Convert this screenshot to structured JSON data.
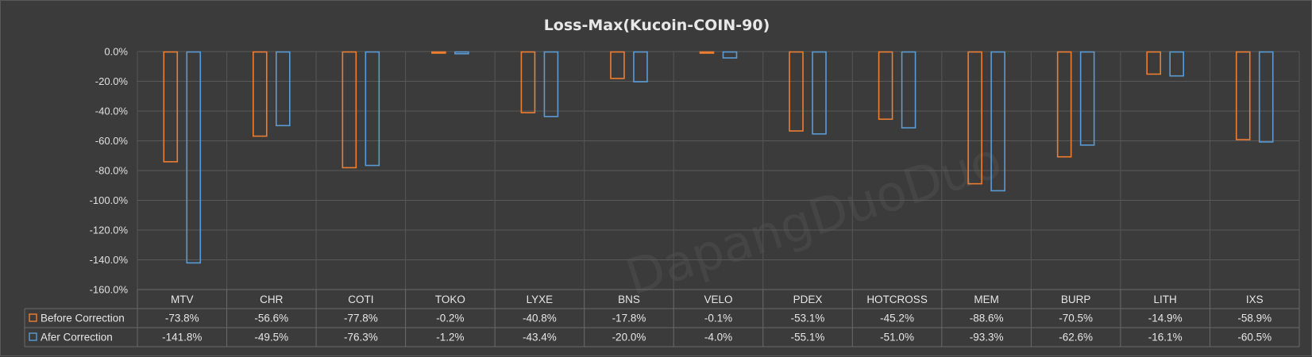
{
  "chart_data": {
    "type": "bar",
    "title": "Loss-Max(Kucoin-COIN-90)",
    "categories": [
      "MTV",
      "CHR",
      "COTI",
      "TOKO",
      "LYXE",
      "BNS",
      "VELO",
      "PDEX",
      "HOTCROSS",
      "MEM",
      "BURP",
      "LITH",
      "IXS"
    ],
    "series": [
      {
        "name": "Before Correction",
        "values": [
          -73.8,
          -56.6,
          -77.8,
          -0.2,
          -40.8,
          -17.8,
          -0.1,
          -53.1,
          -45.2,
          -88.6,
          -70.5,
          -14.9,
          -58.9
        ],
        "labels": [
          "-73.8%",
          "-56.6%",
          "-77.8%",
          "-0.2%",
          "-40.8%",
          "-17.8%",
          "-0.1%",
          "-53.1%",
          "-45.2%",
          "-88.6%",
          "-70.5%",
          "-14.9%",
          "-58.9%"
        ],
        "color": "#ed7d31"
      },
      {
        "name": "Afer Correction",
        "values": [
          -141.8,
          -49.5,
          -76.3,
          -1.2,
          -43.4,
          -20.0,
          -4.0,
          -55.1,
          -51.0,
          -93.3,
          -62.6,
          -16.1,
          -60.5
        ],
        "labels": [
          "-141.8%",
          "-49.5%",
          "-76.3%",
          "-1.2%",
          "-43.4%",
          "-20.0%",
          "-4.0%",
          "-55.1%",
          "-51.0%",
          "-93.3%",
          "-62.6%",
          "-16.1%",
          "-60.5%"
        ],
        "color": "#5b9bd5"
      }
    ],
    "ylim": [
      -160,
      0
    ],
    "yticks": [
      0,
      -20,
      -40,
      -60,
      -80,
      -100,
      -120,
      -140,
      -160
    ],
    "ytick_labels": [
      "0.0%",
      "-20.0%",
      "-40.0%",
      "-60.0%",
      "-80.0%",
      "-100.0%",
      "-120.0%",
      "-140.0%",
      "-160.0%"
    ],
    "grid": true,
    "legend": "data-table",
    "watermark": "DapangDuoDuo"
  }
}
